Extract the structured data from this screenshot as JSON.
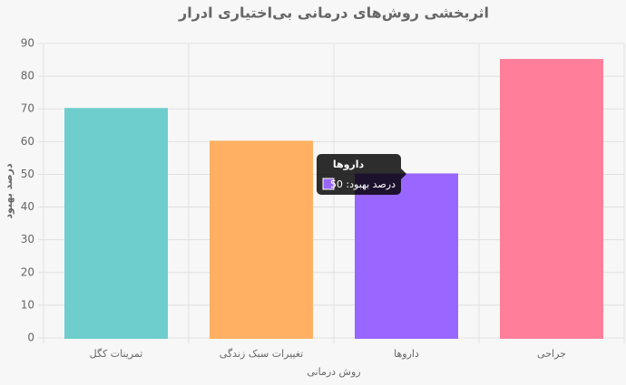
{
  "chart_data": {
    "type": "bar",
    "title": "اثربخشی روش‌های درمانی بی‌اختیاری ادرار",
    "x_label": "روش درمانی",
    "y_label": "درصد بهبود",
    "categories": [
      "تمرینات کگل",
      "تغییرات سبک زندگی",
      "داروها",
      "جراحی"
    ],
    "series": [
      {
        "name": "درصد بهبود",
        "values": [
          70,
          60,
          50,
          85
        ],
        "colors": [
          "#6ecdcd",
          "#ffb062",
          "#9966ff",
          "#ff7f9b"
        ]
      }
    ],
    "ylim": [
      0,
      90
    ],
    "yticks": [
      0,
      10,
      20,
      30,
      40,
      50,
      60,
      70,
      80,
      90
    ],
    "grid": true,
    "tooltip": {
      "title": "داروها",
      "body": "درصد بهبود: 50"
    }
  }
}
